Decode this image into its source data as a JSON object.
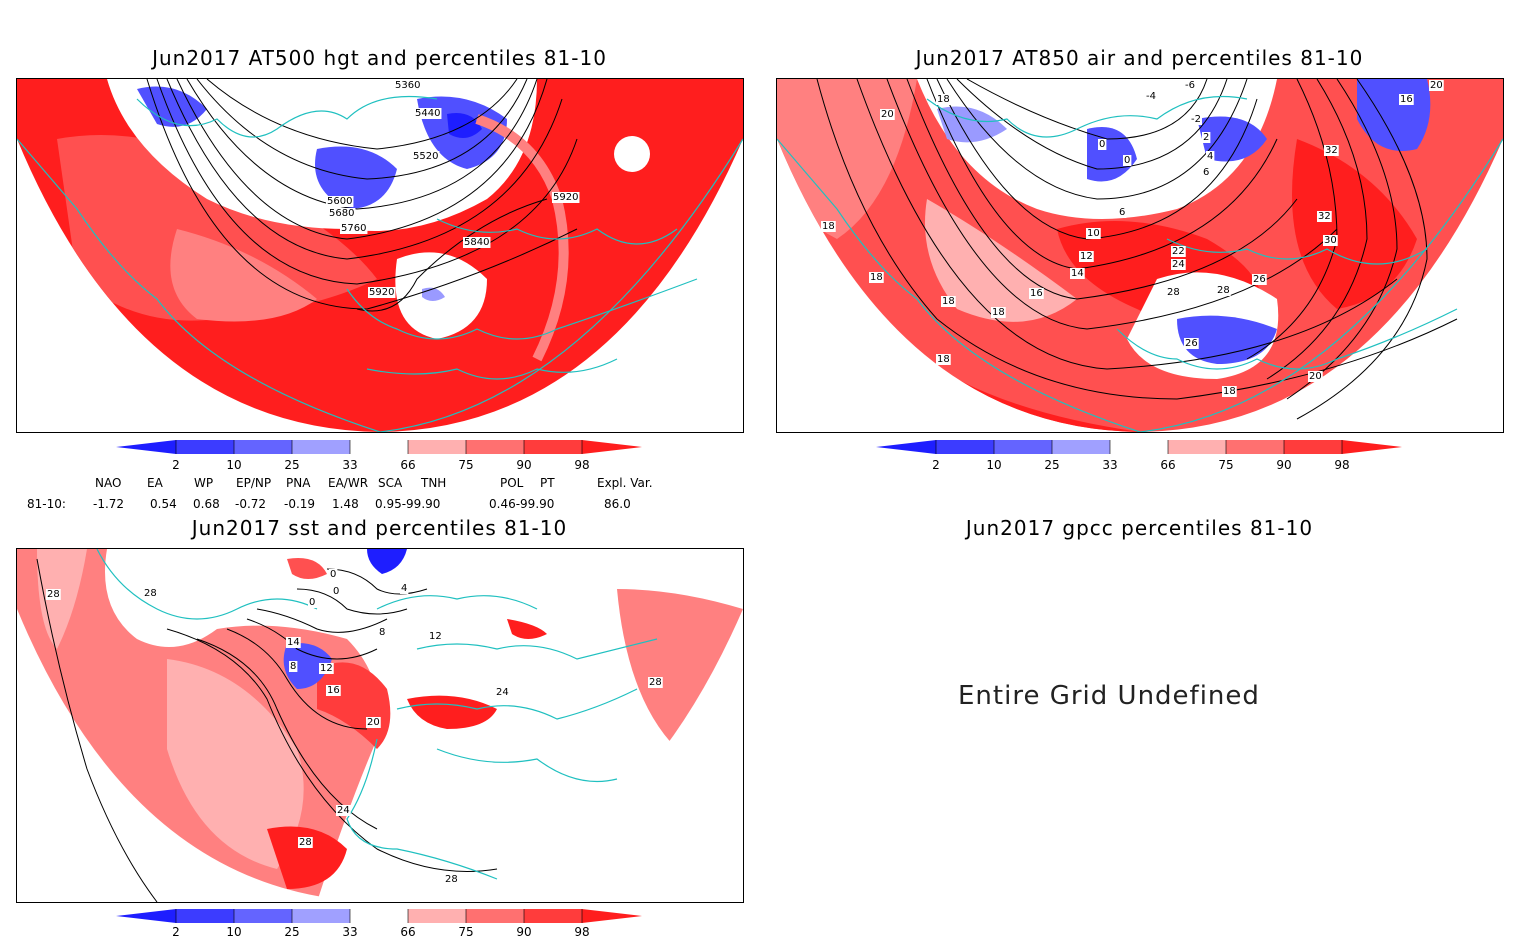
{
  "colors": {
    "deep_blue": "#1e1eff",
    "mid_blue": "#5050ff",
    "light_blue": "#9a9aff",
    "pale_blue": "#c8c8ff",
    "pale_red": "#ffb0b0",
    "light_red": "#ff8080",
    "mid_red": "#ff5050",
    "deep_red": "#ff1e1e",
    "coast": "#20c0c0"
  },
  "panels": {
    "hgt": {
      "title": "Jun2017 AT500 hgt and percentiles 81-10",
      "contour_labels": [
        "5360",
        "5440",
        "5520",
        "5600",
        "5680",
        "5760",
        "5840",
        "5920",
        "5920"
      ]
    },
    "air": {
      "title": "Jun2017 AT850 air and percentiles 81-10",
      "contour_labels": [
        "-6",
        "-4",
        "-2",
        "0",
        "0",
        "2",
        "4",
        "6",
        "6",
        "10",
        "12",
        "14",
        "16",
        "18",
        "18",
        "18",
        "18",
        "18",
        "18",
        "18",
        "20",
        "20",
        "22",
        "24",
        "26",
        "26",
        "28",
        "28",
        "30",
        "32",
        "32",
        "16",
        "20"
      ]
    },
    "sst": {
      "title": "Jun2017 sst and percentiles 81-10",
      "contour_labels": [
        "28",
        "28",
        "0",
        "0",
        "0",
        "4",
        "8",
        "8",
        "12",
        "12",
        "14",
        "16",
        "20",
        "24",
        "24",
        "28",
        "28",
        "28"
      ]
    },
    "gpcc": {
      "title": "Jun2017 gpcc percentiles 81-10",
      "message": "Entire Grid Undefined"
    }
  },
  "colorbar": {
    "labels": [
      "2",
      "10",
      "25",
      "33",
      "66",
      "75",
      "90",
      "98"
    ]
  },
  "indices": {
    "headers": [
      "NAO",
      "EA",
      "WP",
      "EP/NP",
      "PNA",
      "EA/WR",
      "SCA",
      "TNH",
      "POL",
      "PT",
      "Expl. Var."
    ],
    "row_label": "81-10:",
    "values": [
      "-1.72",
      "0.54",
      "0.68",
      "-0.72",
      "-0.19",
      "1.48",
      "0.95-99.90",
      "0.46-99.90",
      "86.0"
    ]
  }
}
